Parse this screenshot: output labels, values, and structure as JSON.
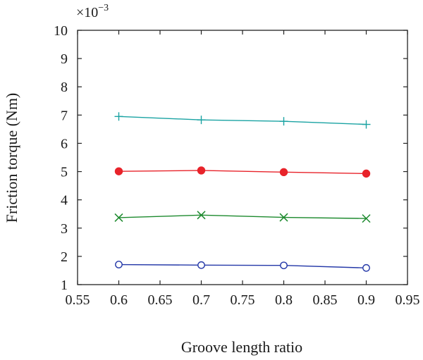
{
  "chart_data": {
    "type": "line",
    "title": "",
    "xlabel": "Groove length ratio",
    "ylabel": "Friction torque (Nm)",
    "y_multiplier": "×10",
    "y_multiplier_exponent": "−3",
    "xlim": [
      0.55,
      0.95
    ],
    "ylim": [
      1,
      10
    ],
    "x_ticks": [
      "0.55",
      "0.6",
      "0.65",
      "0.7",
      "0.75",
      "0.8",
      "0.85",
      "0.9",
      "0.95"
    ],
    "y_ticks": [
      "1",
      "2",
      "3",
      "4",
      "5",
      "6",
      "7",
      "8",
      "9",
      "10"
    ],
    "grid": false,
    "legend": "none",
    "x": [
      0.6,
      0.7,
      0.8,
      0.9
    ],
    "series": [
      {
        "marker": "plus",
        "color": "#1aa3a3",
        "values": [
          6.95,
          6.83,
          6.78,
          6.67
        ]
      },
      {
        "marker": "filled-circle",
        "color": "#e8232a",
        "values": [
          5.01,
          5.04,
          4.98,
          4.93
        ]
      },
      {
        "marker": "x",
        "color": "#1d8a2e",
        "values": [
          3.37,
          3.46,
          3.38,
          3.34
        ]
      },
      {
        "marker": "open-circle",
        "color": "#2438a8",
        "values": [
          1.71,
          1.69,
          1.68,
          1.59
        ]
      }
    ]
  }
}
